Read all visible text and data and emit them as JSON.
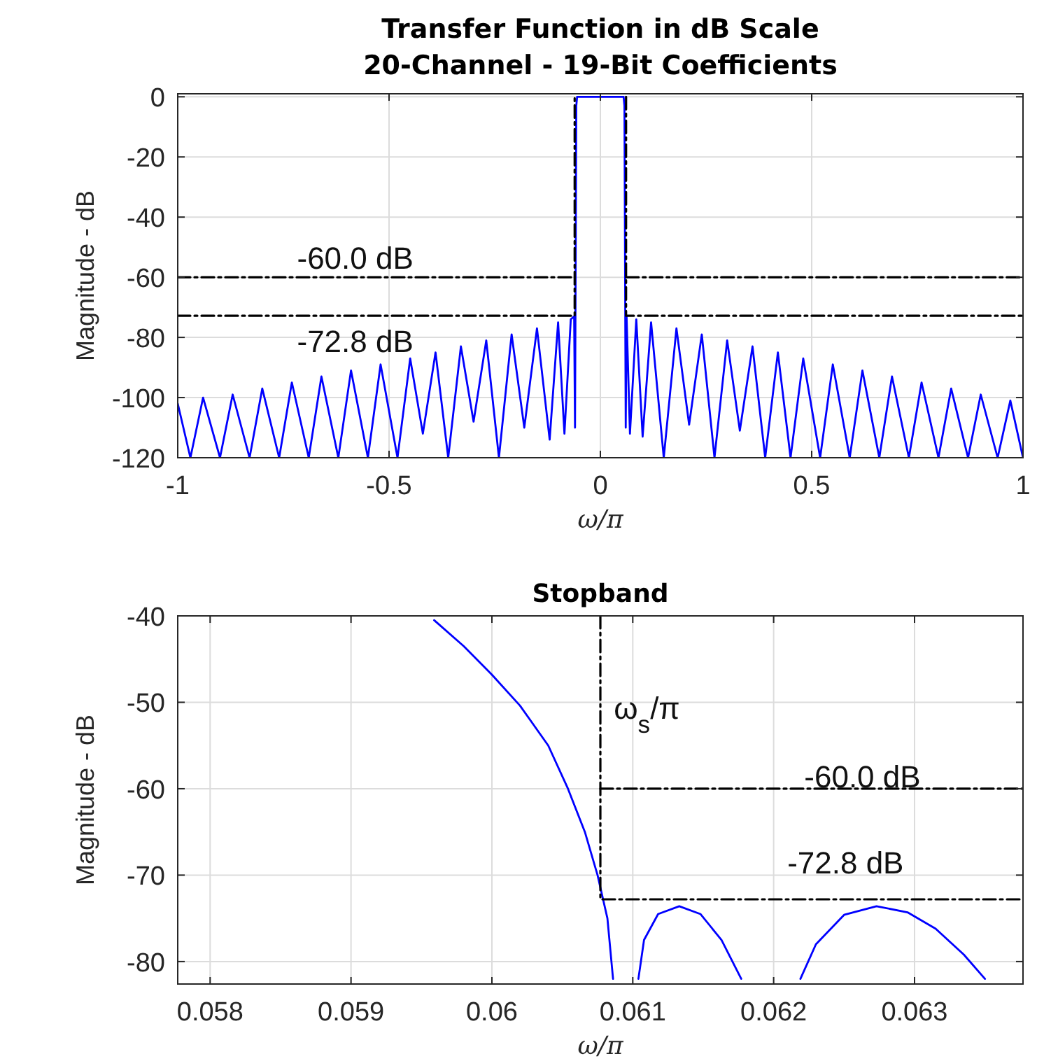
{
  "chart_data": [
    {
      "type": "line",
      "title": "Transfer Function in dB Scale",
      "subtitle": "20-Channel - 19-Bit Coefficients",
      "xlabel": "ω/π",
      "ylabel": "Magnitude - dB",
      "xlim": [
        -1,
        1
      ],
      "ylim": [
        -120,
        1
      ],
      "xticks": [
        -1,
        -0.5,
        0,
        0.5,
        1
      ],
      "yticks": [
        -120,
        -100,
        -80,
        -60,
        -40,
        -20,
        0
      ],
      "grid": true,
      "series": [
        {
          "color": "#0000ff",
          "x": [
            -1,
            -0.97,
            -0.94,
            -0.9,
            -0.87,
            -0.83,
            -0.8,
            -0.76,
            -0.73,
            -0.69,
            -0.66,
            -0.62,
            -0.59,
            -0.55,
            -0.52,
            -0.48,
            -0.45,
            -0.42,
            -0.39,
            -0.36,
            -0.33,
            -0.3,
            -0.27,
            -0.24,
            -0.21,
            -0.18,
            -0.15,
            -0.12,
            -0.1,
            -0.085,
            -0.07,
            -0.062,
            -0.06,
            -0.057,
            -0.055,
            0.055,
            0.057,
            0.06,
            0.062,
            0.07,
            0.085,
            0.1,
            0.12,
            0.15,
            0.18,
            0.21,
            0.24,
            0.27,
            0.3,
            0.33,
            0.36,
            0.39,
            0.42,
            0.45,
            0.48,
            0.52,
            0.55,
            0.59,
            0.62,
            0.66,
            0.69,
            0.73,
            0.76,
            0.8,
            0.83,
            0.87,
            0.9,
            0.94,
            0.97,
            1
          ],
          "values": [
            -102,
            -120,
            -100,
            -120,
            -99,
            -120,
            -97,
            -120,
            -95,
            -120,
            -93,
            -120,
            -91,
            -120,
            -89,
            -120,
            -87,
            -112,
            -85,
            -120,
            -83,
            -108,
            -81,
            -120,
            -79,
            -110,
            -77,
            -114,
            -75,
            -112,
            -74,
            -73,
            -110,
            -3,
            0,
            0,
            -3,
            -110,
            -73,
            -112,
            -74,
            -113,
            -75,
            -120,
            -77,
            -109,
            -79,
            -120,
            -81,
            -111,
            -83,
            -120,
            -85,
            -120,
            -87,
            -120,
            -89,
            -120,
            -91,
            -120,
            -93,
            -120,
            -95,
            -120,
            -97,
            -120,
            -99,
            -120,
            -101,
            -120
          ]
        },
        {
          "color": "#000000",
          "line_style": "dashed",
          "x": [
            -1,
            -0.0608,
            -0.0608,
            null,
            0.0608,
            0.0608,
            1
          ],
          "values": [
            -72.8,
            -72.8,
            0,
            null,
            0,
            -72.8,
            -72.8
          ]
        },
        {
          "color": "#000000",
          "line_style": "dashed",
          "x": [
            -1,
            -0.0608,
            null,
            0.0608,
            1
          ],
          "values": [
            -60,
            -60,
            null,
            -60,
            -60
          ]
        }
      ],
      "annotations": [
        "-60.0 dB",
        "-72.8 dB"
      ]
    },
    {
      "type": "line",
      "title": "Stopband",
      "xlabel": "ω/π",
      "ylabel": "Magnitude - dB",
      "xlim": [
        0.05777,
        0.06377
      ],
      "ylim": [
        -82.6,
        -40
      ],
      "xticks": [
        {
          "value": 0.058,
          "label": "0.058"
        },
        {
          "value": 0.059,
          "label": "0.059"
        },
        {
          "value": 0.06,
          "label": "0.06"
        },
        {
          "value": 0.061,
          "label": "0.061"
        },
        {
          "value": 0.062,
          "label": "0.062"
        },
        {
          "value": 0.063,
          "label": "0.063"
        }
      ],
      "yticks": [
        -80,
        -70,
        -60,
        -50,
        -40
      ],
      "grid": true,
      "series": [
        {
          "color": "#0000ff",
          "x": [
            0.05959,
            0.0598,
            0.06,
            0.0602,
            0.0604,
            0.06054,
            0.06066,
            0.06075,
            0.06082,
            0.06086,
            null,
            0.06104,
            0.06108,
            0.06118,
            0.06133,
            0.06148,
            0.06163,
            0.06177,
            null,
            0.06219,
            0.0623,
            0.0625,
            0.06273,
            0.06295,
            0.06315,
            0.06335,
            0.0635
          ],
          "values": [
            -40.5,
            -43.5,
            -46.8,
            -50.4,
            -55,
            -60,
            -65,
            -70,
            -75,
            -82,
            null,
            -82,
            -77.5,
            -74.5,
            -73.6,
            -74.5,
            -77.5,
            -82,
            null,
            -82,
            -78,
            -74.6,
            -73.6,
            -74.3,
            -76.2,
            -79.2,
            -82
          ]
        },
        {
          "color": "#000000",
          "line_style": "dashed",
          "x": [
            0.06077,
            0.06077,
            0.06377
          ],
          "values": [
            -40,
            -72.8,
            -72.8
          ]
        },
        {
          "color": "#000000",
          "line_style": "dashed",
          "x": [
            0.06077,
            0.06377
          ],
          "values": [
            -60,
            -60
          ]
        }
      ],
      "annotations": [
        "ω$_{s}$/π",
        "-60.0 dB",
        "-72.8 dB"
      ]
    }
  ]
}
